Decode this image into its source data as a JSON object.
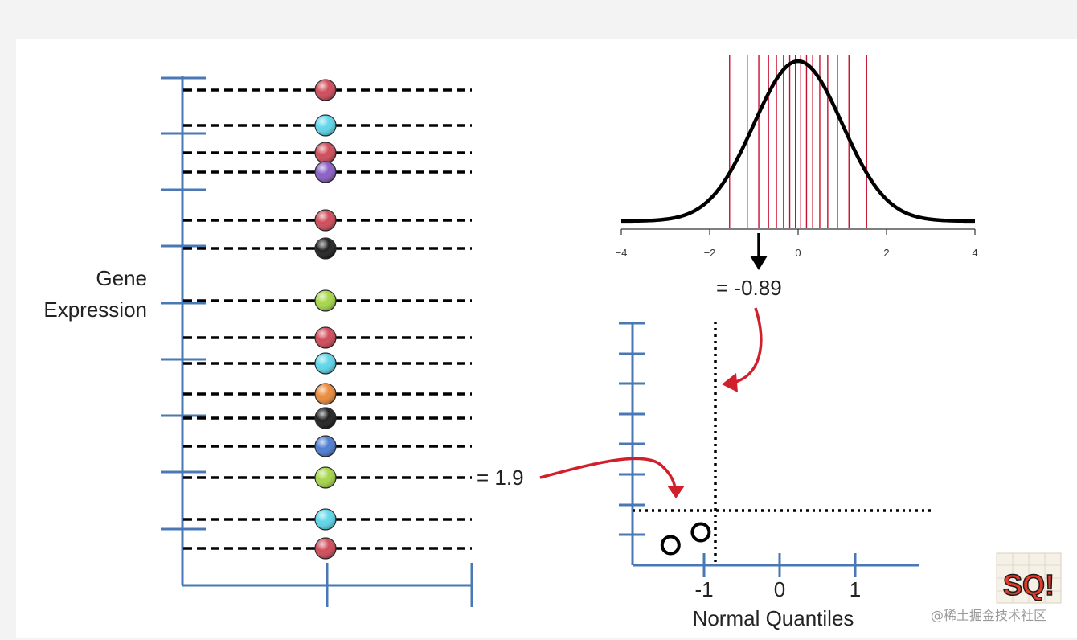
{
  "left_panel": {
    "axis_label_line1": "Gene",
    "axis_label_line2": "Expression",
    "points": [
      {
        "color": "#cf4c5a"
      },
      {
        "color": "#5fd6ea"
      },
      {
        "color": "#cf4c5a"
      },
      {
        "color": "#8a5fc4"
      },
      {
        "color": "#cf4c5a"
      },
      {
        "color": "#222222"
      },
      {
        "color": "#a6d64a"
      },
      {
        "color": "#cf4c5a"
      },
      {
        "color": "#5fd6ea"
      },
      {
        "color": "#ec8a3a"
      },
      {
        "color": "#222222"
      },
      {
        "color": "#4e7dd2"
      },
      {
        "color": "#a6d64a"
      },
      {
        "color": "#5fd6ea"
      },
      {
        "color": "#cf4c5a"
      }
    ],
    "value_callout": "= 1.9"
  },
  "normal_curve": {
    "x_ticks": [
      "−4",
      "−2",
      "0",
      "2",
      "4"
    ],
    "x_range": [
      -4,
      4
    ],
    "quantile_lines": [
      -1.55,
      -1.15,
      -0.89,
      -0.67,
      -0.49,
      -0.33,
      -0.19,
      -0.06,
      0.06,
      0.19,
      0.33,
      0.49,
      0.67,
      0.89,
      1.15,
      1.55
    ],
    "value_callout": "= -0.89"
  },
  "qq_plot": {
    "xlabel": "Normal Quantiles",
    "x_ticks": [
      "-1",
      "0",
      "1"
    ],
    "points": [
      {
        "quantile": -1.55,
        "value_rank": 1
      },
      {
        "quantile": -1.15,
        "value_rank": 2
      }
    ]
  },
  "watermark": {
    "text": "@稀土掘金技术社区",
    "logo_text": "SQ!"
  },
  "colors": {
    "axis": "#4a78b6",
    "arrow": "#d21f2c",
    "quantile_line": "#c8102e",
    "curve": "#000000"
  }
}
